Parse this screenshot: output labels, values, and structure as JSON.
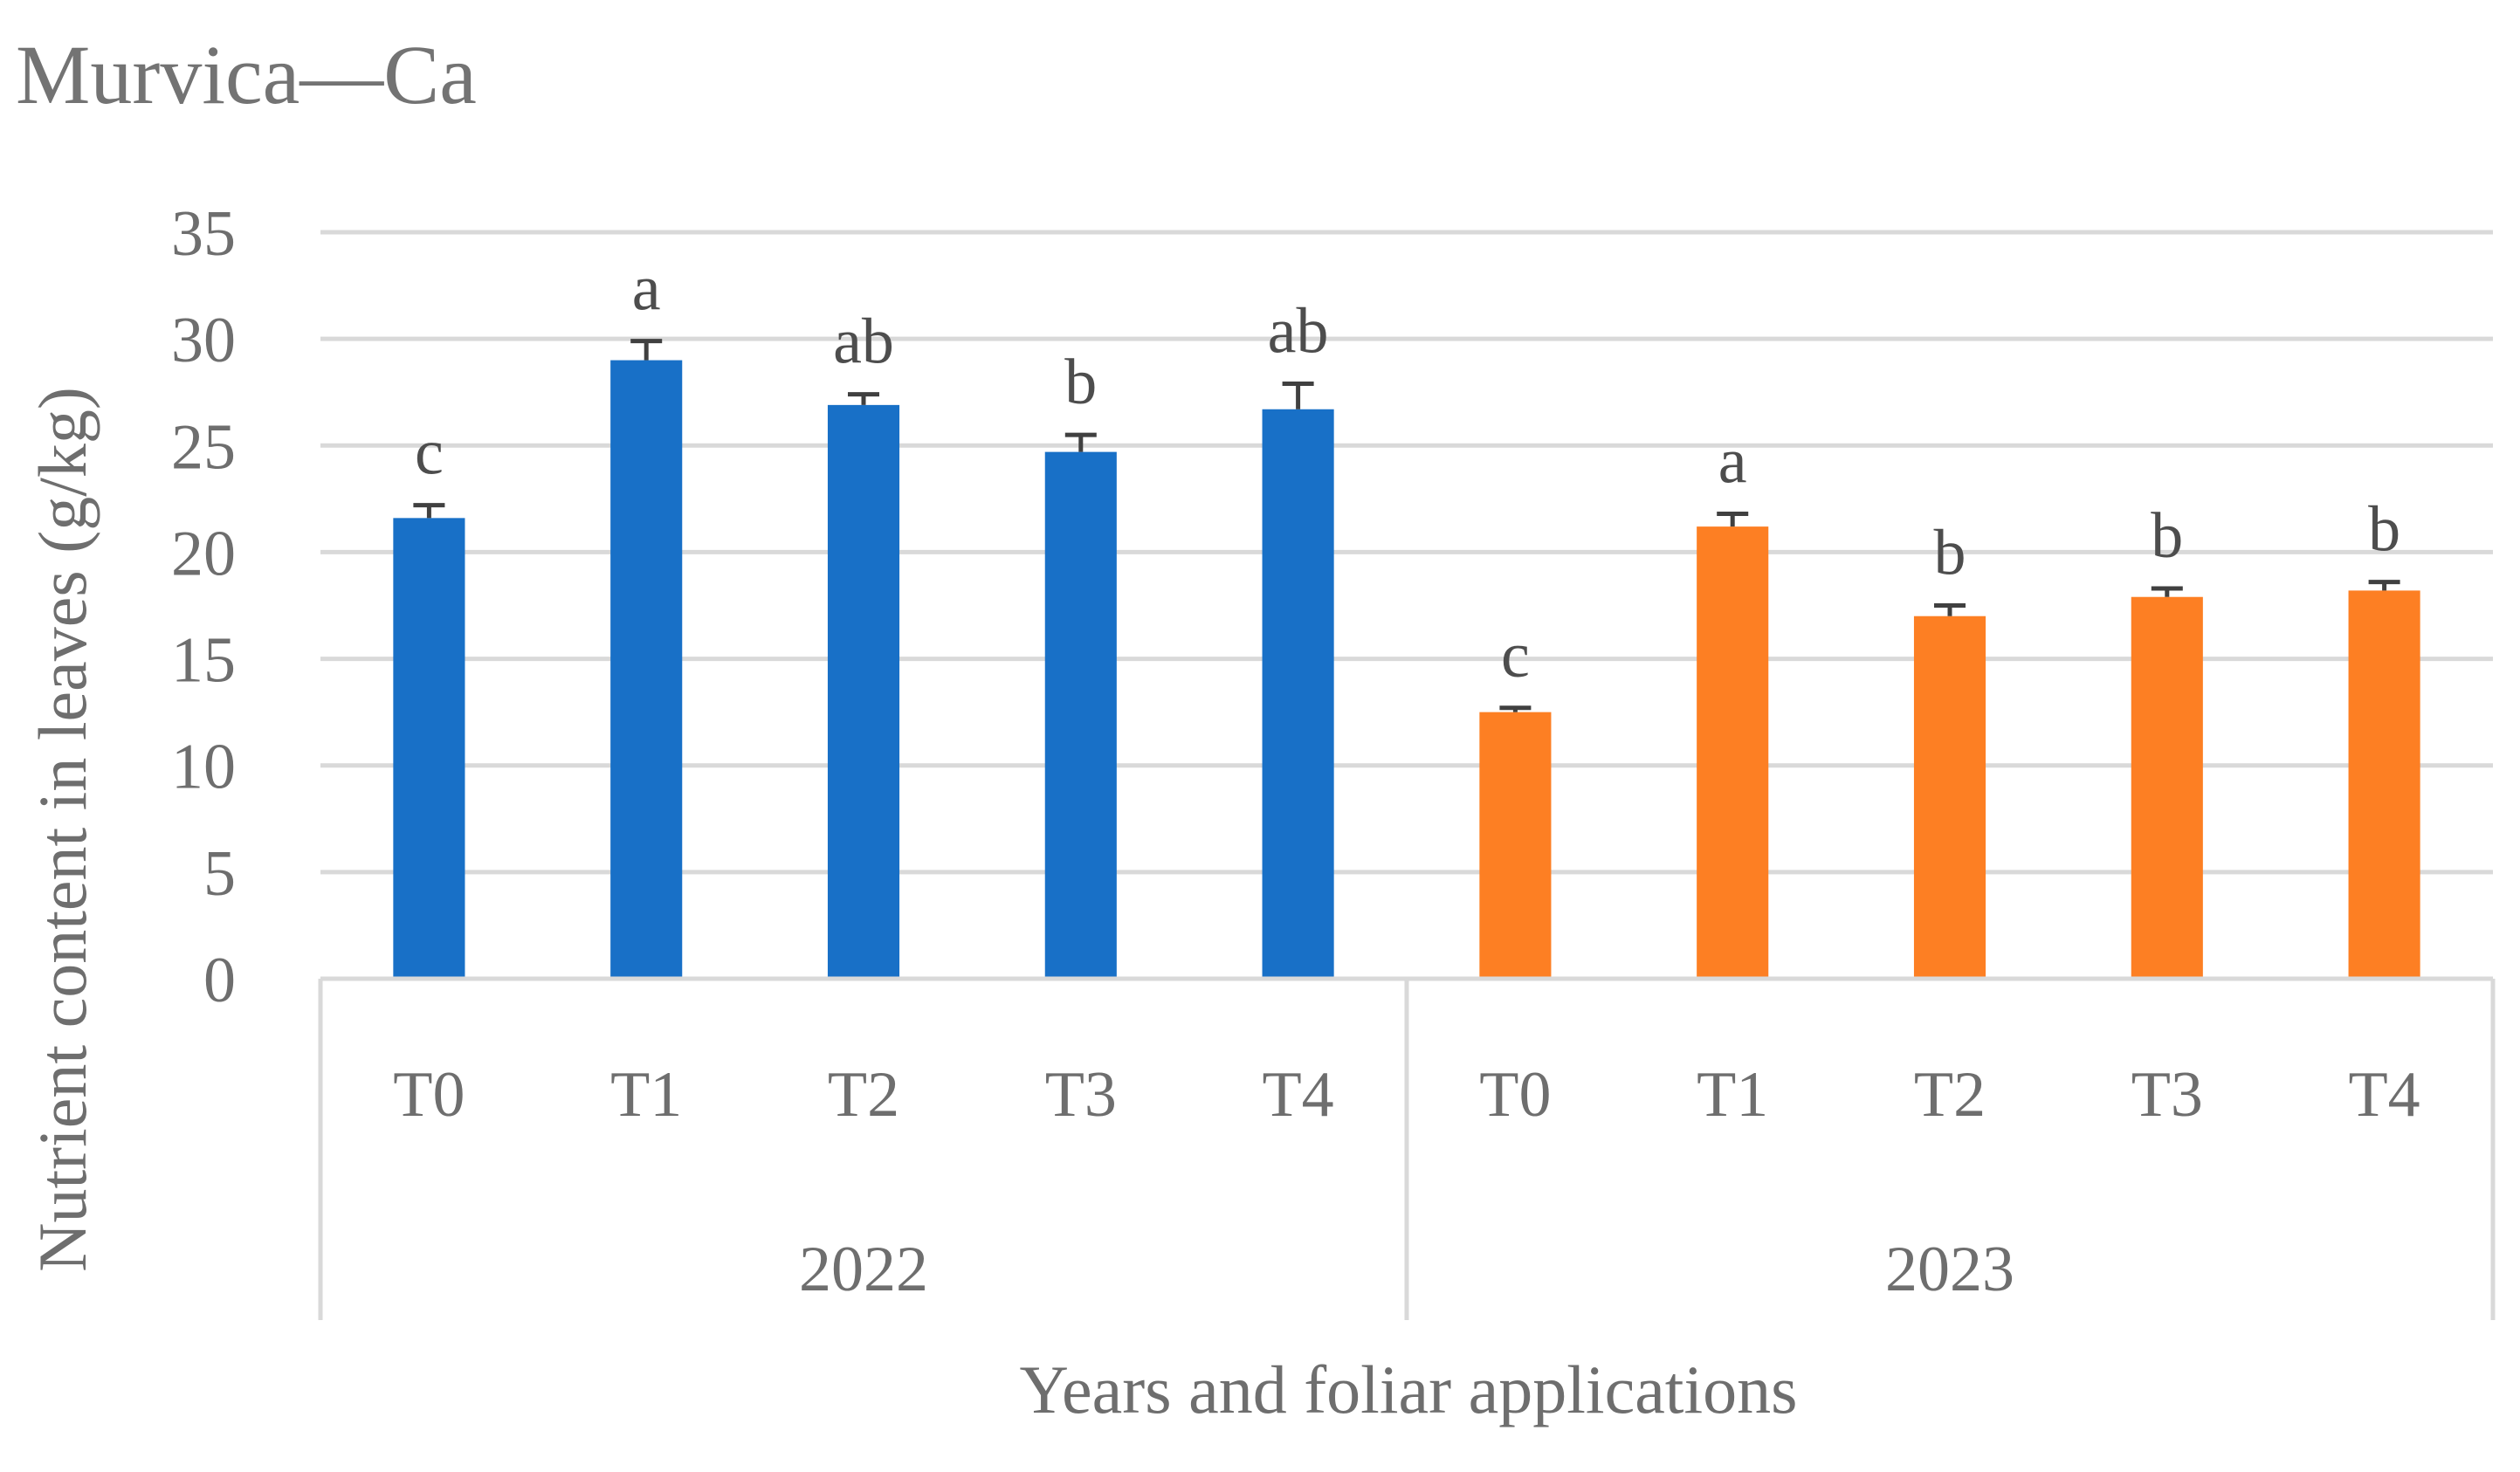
{
  "chart_data": {
    "type": "bar",
    "title": "Murvica—Ca",
    "xlabel": "Years and foliar applications",
    "ylabel": "Nutrient content in leaves (g/kg)",
    "ylim": [
      0,
      35
    ],
    "yticks": [
      0,
      5,
      10,
      15,
      20,
      25,
      30,
      35
    ],
    "grid": true,
    "groups": [
      {
        "name": "2022",
        "color": "#1870C7",
        "categories": [
          "T0",
          "T1",
          "T2",
          "T3",
          "T4"
        ],
        "values": [
          21.6,
          29.0,
          26.9,
          24.7,
          26.7
        ],
        "errors": [
          0.6,
          0.9,
          0.5,
          0.8,
          1.2
        ],
        "letters": [
          "c",
          "a",
          "ab",
          "b",
          "ab"
        ]
      },
      {
        "name": "2023",
        "color": "#FD7F23",
        "categories": [
          "T0",
          "T1",
          "T2",
          "T3",
          "T4"
        ],
        "values": [
          12.5,
          21.2,
          17.0,
          17.9,
          18.2
        ],
        "errors": [
          0.2,
          0.6,
          0.5,
          0.4,
          0.4
        ],
        "letters": [
          "c",
          "a",
          "b",
          "b",
          "b"
        ]
      }
    ]
  }
}
